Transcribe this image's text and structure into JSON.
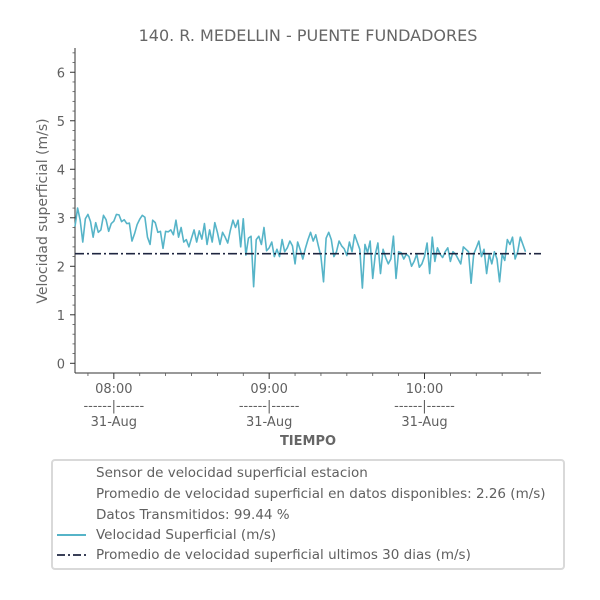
{
  "chart_data": {
    "type": "line",
    "title": "140. R. MEDELLIN - PUENTE FUNDADORES",
    "xlabel": "TIEMPO",
    "ylabel": "Velocidad superficial (m/s)",
    "ylim": [
      -0.2,
      6.5
    ],
    "yticks": [
      0,
      1,
      2,
      3,
      4,
      5,
      6
    ],
    "xlim": [
      "07:45",
      "10:45"
    ],
    "xticks": [
      {
        "time": "08:00",
        "sep": "------|------",
        "date": "31-Aug"
      },
      {
        "time": "09:00",
        "sep": "------|------",
        "date": "31-Aug"
      },
      {
        "time": "10:00",
        "sep": "------|------",
        "date": "31-Aug"
      }
    ],
    "series": [
      {
        "name": "Velocidad Superficial (m/s)",
        "color": "#56b4c8",
        "x_start": "07:45",
        "x_step_minutes": 1,
        "values": [
          2.82,
          3.2,
          2.95,
          2.5,
          2.98,
          3.07,
          2.92,
          2.6,
          2.9,
          2.7,
          2.75,
          3.05,
          2.96,
          2.72,
          2.88,
          2.93,
          3.07,
          3.06,
          2.92,
          2.96,
          2.88,
          2.89,
          2.52,
          2.67,
          2.86,
          2.97,
          3.05,
          3.01,
          2.6,
          2.45,
          2.95,
          2.9,
          2.7,
          2.72,
          2.37,
          2.72,
          2.71,
          2.75,
          2.65,
          2.95,
          2.6,
          2.8,
          2.5,
          2.55,
          2.4,
          2.58,
          2.75,
          2.5,
          2.73,
          2.56,
          2.88,
          2.45,
          2.75,
          2.5,
          2.9,
          2.7,
          2.45,
          2.7,
          2.6,
          2.48,
          2.74,
          2.95,
          2.8,
          2.95,
          2.4,
          2.98,
          2.23,
          2.58,
          2.62,
          1.58,
          2.55,
          2.62,
          2.45,
          2.8,
          2.32,
          2.38,
          2.5,
          2.2,
          2.35,
          2.2,
          2.55,
          2.3,
          2.38,
          2.52,
          2.42,
          2.05,
          2.5,
          2.34,
          2.15,
          2.37,
          2.55,
          2.7,
          2.52,
          2.65,
          2.42,
          2.2,
          1.68,
          2.58,
          2.7,
          2.55,
          2.2,
          2.3,
          2.52,
          2.42,
          2.36,
          2.22,
          2.5,
          2.3,
          2.65,
          2.5,
          2.35,
          1.55,
          2.45,
          2.28,
          2.52,
          1.75,
          2.25,
          2.48,
          1.85,
          2.35,
          2.18,
          2.05,
          2.15,
          2.62,
          1.75,
          2.3,
          2.28,
          2.15,
          2.25,
          2.2,
          2.0,
          2.1,
          2.25,
          1.98,
          2.05,
          2.2,
          2.48,
          1.85,
          2.6,
          2.1,
          2.38,
          2.25,
          2.18,
          2.3,
          2.38,
          2.1,
          2.3,
          2.25,
          2.15,
          2.05,
          2.4,
          2.35,
          2.3,
          1.65,
          2.25,
          2.38,
          2.52,
          2.2,
          2.35,
          1.85,
          2.25,
          2.05,
          2.3,
          2.15,
          1.68,
          2.25,
          2.12,
          2.55,
          2.45,
          2.6,
          2.15,
          2.3,
          2.6,
          2.45,
          2.3
        ]
      },
      {
        "name": "Promedio de velocidad superficial ultimos 30 dias (m/s)",
        "color": "#1f2640",
        "style": "dashdot",
        "value": 2.26
      }
    ],
    "legend": {
      "placement": "bottom",
      "info_lines": [
        "Sensor de velocidad superficial estacion",
        "Promedio de velocidad superficial en datos disponibles: 2.26 (m/s)",
        "Datos Transmitidos: 99.44 %"
      ],
      "entries": [
        {
          "label": "Velocidad Superficial (m/s)",
          "color": "#56b4c8",
          "style": "solid"
        },
        {
          "label": "Promedio de velocidad superficial ultimos 30 dias (m/s)",
          "color": "#1f2640",
          "style": "dashdot"
        }
      ]
    },
    "grid": false
  }
}
